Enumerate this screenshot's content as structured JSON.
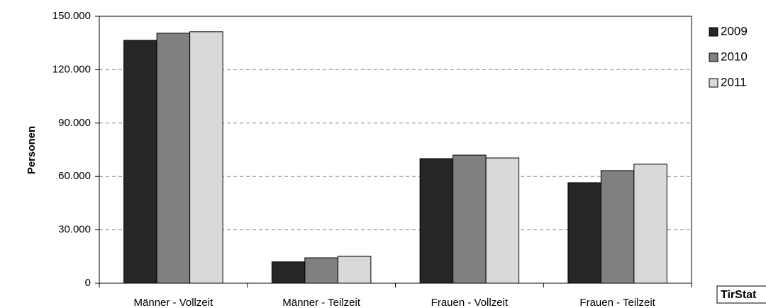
{
  "chart_data": {
    "type": "bar",
    "y_label": "Personen",
    "source": "TirStat",
    "categories": [
      "Männer - Vollzeit",
      "Männer - Teilzeit",
      "Frauen - Vollzeit",
      "Frauen - Teilzeit"
    ],
    "series": [
      {
        "name": "2009",
        "color": "#262626",
        "values": [
          136500,
          12000,
          70000,
          56500
        ]
      },
      {
        "name": "2010",
        "color": "#808080",
        "values": [
          140500,
          14300,
          72000,
          63300
        ]
      },
      {
        "name": "2011",
        "color": "#d9d9d9",
        "values": [
          141300,
          15100,
          70400,
          66900
        ]
      }
    ],
    "ylim": [
      0,
      150000
    ],
    "yticks": [
      0,
      {
        "value": 30000,
        "label": "30.000"
      },
      {
        "value": 60000,
        "label": "60.000"
      },
      {
        "value": 90000,
        "label": "90.000"
      },
      {
        "value": 120000,
        "label": "120.000"
      },
      {
        "value": 150000,
        "label": "150.000"
      }
    ],
    "grid": true,
    "legend": "right"
  }
}
